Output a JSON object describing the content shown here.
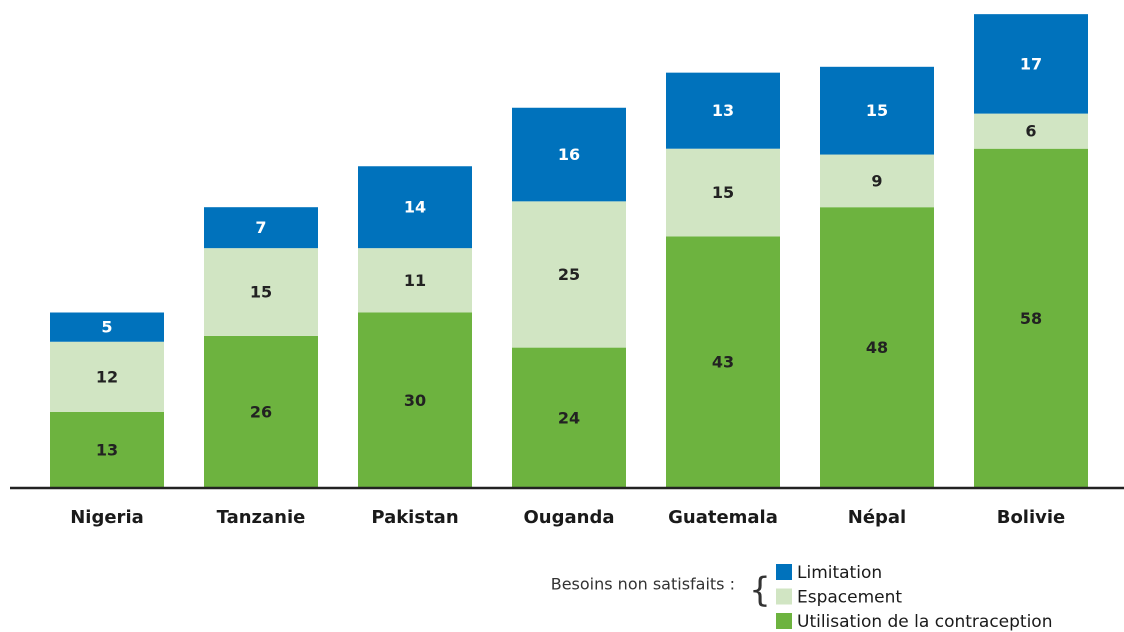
{
  "chart_data": {
    "type": "stacked_bar",
    "categories": [
      "Nigeria",
      "Tanzanie",
      "Pakistan",
      "Ouganda",
      "Guatemala",
      "Népal",
      "Bolivie"
    ],
    "series": [
      {
        "name": "Utilisation de la contraception",
        "color": "#6db33f",
        "values": [
          13,
          26,
          30,
          24,
          43,
          48,
          58
        ]
      },
      {
        "name": "Espacement",
        "color": "#d1e5c3",
        "values": [
          12,
          15,
          11,
          25,
          15,
          9,
          6
        ]
      },
      {
        "name": "Limitation",
        "color": "#0072bc",
        "values": [
          5,
          7,
          14,
          16,
          13,
          15,
          17
        ]
      }
    ],
    "legend_title": "Besoins non satisfaits :",
    "legend_braced": [
      "Limitation",
      "Espacement"
    ]
  }
}
